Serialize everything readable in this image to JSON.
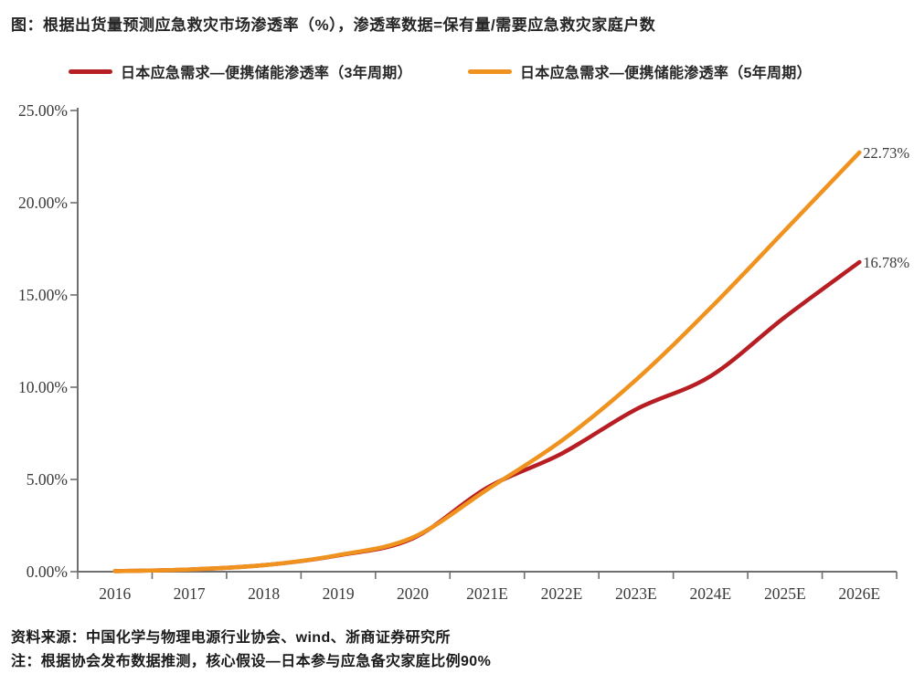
{
  "title": "图：根据出货量预测应急救灾市场渗透率（%），渗透率数据=保有量/需要应急救灾家庭户数",
  "legend": {
    "items": [
      {
        "label": "日本应急需求—便携储能渗透率（3年周期）",
        "color": "#B71E23"
      },
      {
        "label": "日本应急需求—便携储能渗透率（5年周期）",
        "color": "#F0921E"
      }
    ]
  },
  "chart_data": {
    "type": "line",
    "title": "根据出货量预测应急救灾市场渗透率（%）",
    "categories": [
      "2016",
      "2017",
      "2018",
      "2019",
      "2020",
      "2021E",
      "2022E",
      "2023E",
      "2024E",
      "2025E",
      "2026E"
    ],
    "series": [
      {
        "name": "日本应急需求—便携储能渗透率（3年周期）",
        "color": "#B71E23",
        "values": [
          0.03,
          0.12,
          0.35,
          0.88,
          1.8,
          4.55,
          6.4,
          8.8,
          10.6,
          13.8,
          16.78
        ],
        "end_label": "16.78%"
      },
      {
        "name": "日本应急需求—便携储能渗透率（5年周期）",
        "color": "#F0921E",
        "values": [
          0.03,
          0.12,
          0.35,
          0.9,
          1.85,
          4.45,
          7.1,
          10.4,
          14.3,
          18.5,
          22.73
        ],
        "end_label": "22.73%"
      }
    ],
    "xlabel": "",
    "ylabel": "",
    "ylim": [
      0,
      25
    ],
    "yticks": [
      "0.00%",
      "5.00%",
      "10.00%",
      "15.00%",
      "20.00%",
      "25.00%"
    ],
    "grid": false,
    "legend_position": "top",
    "axis_color": "#6F6F6F",
    "tick_label_color": "#3A3A3A"
  },
  "footer": {
    "source": "资料来源：中国化学与物理电源行业协会、wind、浙商证券研究所",
    "note": "注：根据协会发布数据推测，核心假设—日本参与应急备灾家庭比例90%"
  }
}
